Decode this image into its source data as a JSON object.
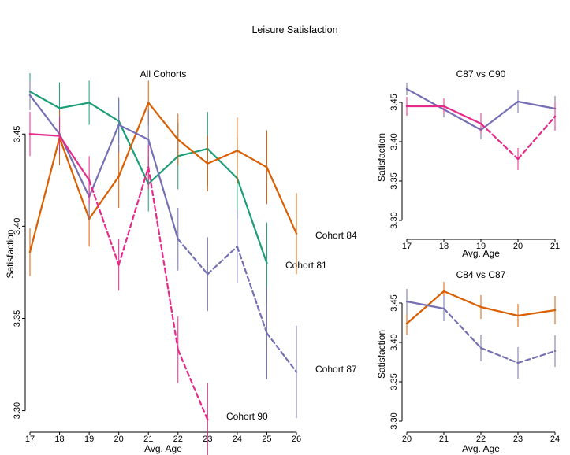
{
  "figure_title": "Leisure Satisfaction",
  "chart_data": [
    {
      "type": "line",
      "title": "All Cohorts",
      "xlabel": "Avg. Age",
      "ylabel": "Satisfaction",
      "xlim": [
        17,
        26
      ],
      "ylim": [
        3.29,
        3.48
      ],
      "x_ticks": [
        17,
        18,
        19,
        20,
        21,
        22,
        23,
        24,
        25,
        26
      ],
      "y_ticks": [
        3.3,
        3.35,
        3.4,
        3.45
      ],
      "y_tick_labels": [
        "3.30",
        "3.35",
        "3.40",
        "3.45"
      ],
      "grid": false,
      "legend": "direct labels",
      "series": [
        {
          "name": "Cohort 81",
          "color": "#1b9e77",
          "x": [
            17,
            18,
            19,
            20,
            21,
            22,
            23,
            24,
            25
          ],
          "y": [
            3.473,
            3.464,
            3.467,
            3.457,
            3.423,
            3.438,
            3.442,
            3.426,
            3.38
          ],
          "err": [
            0.01,
            0.014,
            0.012,
            0.012,
            0.015,
            0.018,
            0.02,
            0.022,
            0.022
          ],
          "dashed": [
            false,
            false,
            false,
            false,
            false,
            false,
            false,
            false
          ]
        },
        {
          "name": "Cohort 84",
          "color": "#d95f02",
          "x": [
            17,
            18,
            19,
            20,
            21,
            22,
            23,
            24,
            25,
            26
          ],
          "y": [
            3.386,
            3.448,
            3.404,
            3.427,
            3.467,
            3.447,
            3.434,
            3.441,
            3.432,
            3.396
          ],
          "err": [
            0.013,
            0.015,
            0.015,
            0.017,
            0.012,
            0.014,
            0.015,
            0.018,
            0.02,
            0.022
          ],
          "dashed": [
            false,
            false,
            false,
            false,
            false,
            false,
            false,
            false,
            false
          ]
        },
        {
          "name": "Cohort 87",
          "color": "#7570b3",
          "x": [
            17,
            18,
            19,
            20,
            21,
            22,
            23,
            24,
            25,
            26
          ],
          "y": [
            3.471,
            3.45,
            3.416,
            3.455,
            3.447,
            3.393,
            3.374,
            3.389,
            3.342,
            3.321
          ],
          "err": [
            0.008,
            0.01,
            0.012,
            0.015,
            0.016,
            0.017,
            0.02,
            0.02,
            0.025,
            0.025
          ],
          "dashed": [
            false,
            false,
            false,
            false,
            false,
            true,
            true,
            true,
            true
          ]
        },
        {
          "name": "Cohort 90",
          "color": "#e7298a",
          "x": [
            17,
            18,
            19,
            20,
            21,
            22,
            23
          ],
          "y": [
            3.45,
            3.449,
            3.425,
            3.379,
            3.432,
            3.333,
            3.295
          ],
          "err": [
            0.012,
            0.01,
            0.013,
            0.014,
            0.012,
            0.018,
            0.02
          ],
          "dashed": [
            false,
            false,
            true,
            true,
            true,
            true
          ]
        }
      ]
    },
    {
      "type": "line",
      "title": "C87 vs C90",
      "xlabel": "Avg. Age",
      "ylabel": "Satisfaction",
      "xlim": [
        17,
        21
      ],
      "ylim": [
        3.28,
        3.48
      ],
      "x_ticks": [
        17,
        18,
        19,
        20,
        21
      ],
      "y_ticks": [
        3.3,
        3.35,
        3.4,
        3.45
      ],
      "y_tick_labels": [
        "3.30",
        "3.35",
        "3.40",
        "3.45"
      ],
      "grid": false,
      "series": [
        {
          "color": "#7570b3",
          "x": [
            17,
            18,
            19,
            20,
            21
          ],
          "y": [
            3.467,
            3.441,
            3.415,
            3.451,
            3.442
          ],
          "err": [
            0.008,
            0.01,
            0.012,
            0.015,
            0.016
          ],
          "dashed": [
            false,
            false,
            false,
            false
          ]
        },
        {
          "color": "#e7298a",
          "x": [
            17,
            18,
            19,
            20,
            21
          ],
          "y": [
            3.445,
            3.445,
            3.423,
            3.378,
            3.432
          ],
          "err": [
            0.012,
            0.01,
            0.013,
            0.014,
            0.018
          ],
          "dashed": [
            false,
            false,
            true,
            true
          ]
        }
      ]
    },
    {
      "type": "line",
      "title": "C84 vs C87",
      "xlabel": "Avg. Age",
      "ylabel": "Satisfaction",
      "xlim": [
        20,
        24
      ],
      "ylim": [
        3.29,
        3.48
      ],
      "x_ticks": [
        20,
        21,
        22,
        23,
        24
      ],
      "y_ticks": [
        3.3,
        3.35,
        3.4,
        3.45
      ],
      "y_tick_labels": [
        "3.30",
        "3.35",
        "3.40",
        "3.45"
      ],
      "grid": false,
      "series": [
        {
          "color": "#d95f02",
          "x": [
            20,
            21,
            22,
            23,
            24
          ],
          "y": [
            3.424,
            3.465,
            3.445,
            3.434,
            3.441
          ],
          "err": [
            0.015,
            0.012,
            0.015,
            0.015,
            0.018
          ],
          "dashed": [
            false,
            false,
            false,
            false
          ]
        },
        {
          "color": "#7570b3",
          "x": [
            20,
            21,
            22,
            23,
            24
          ],
          "y": [
            3.452,
            3.443,
            3.393,
            3.374,
            3.389
          ],
          "err": [
            0.016,
            0.016,
            0.017,
            0.02,
            0.02
          ],
          "dashed": [
            false,
            true,
            true,
            true
          ]
        }
      ]
    }
  ]
}
